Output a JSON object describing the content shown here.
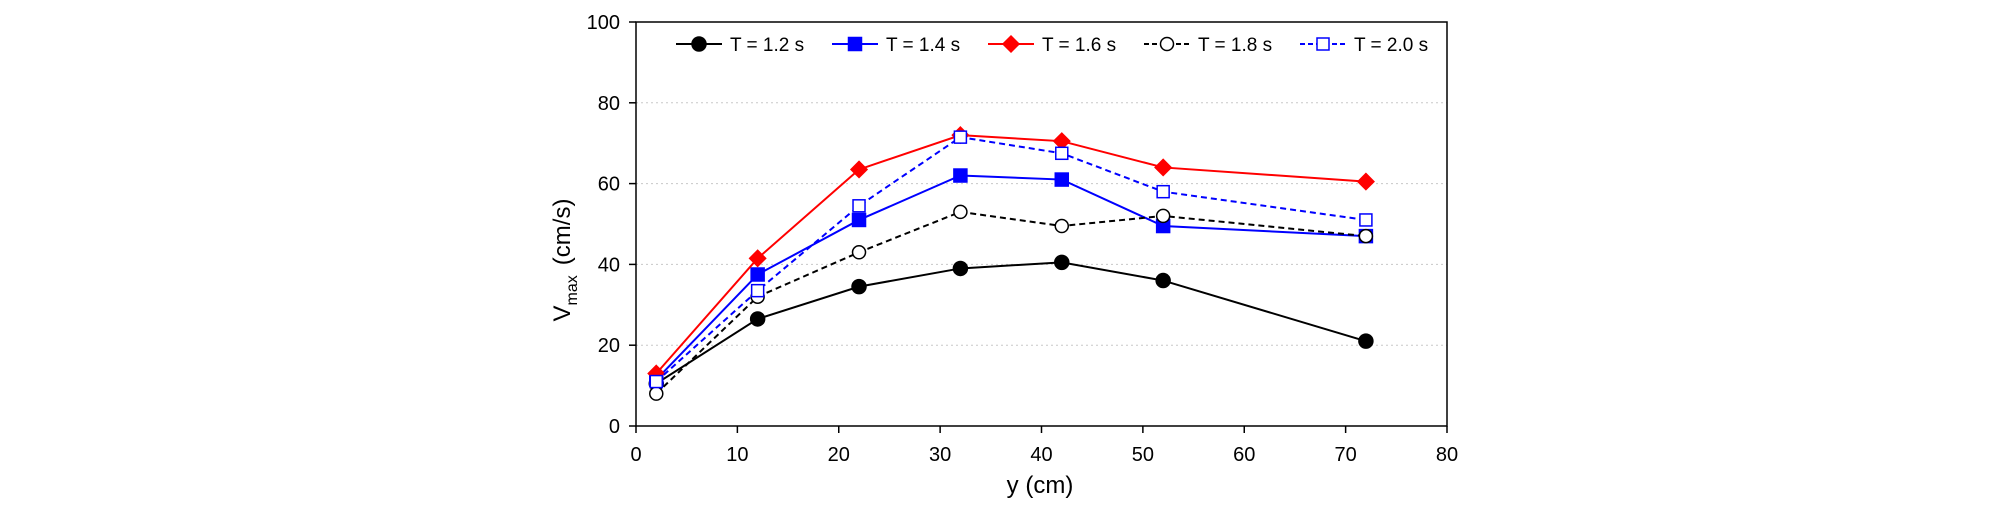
{
  "chart_data": {
    "type": "line",
    "title": "",
    "xlabel": "y (cm)",
    "ylabel_main": "V",
    "ylabel_sub": "max",
    "ylabel_unit": "(cm/s)",
    "xlim": [
      0,
      80
    ],
    "ylim": [
      0,
      100
    ],
    "xticks": [
      0,
      10,
      20,
      30,
      40,
      50,
      60,
      70,
      80
    ],
    "yticks": [
      0,
      20,
      40,
      60,
      80,
      100
    ],
    "grid": "horizontal-dotted",
    "legend_position": "top",
    "x": [
      2,
      12,
      22,
      32,
      42,
      52,
      72
    ],
    "series": [
      {
        "name": "T = 1.2 s",
        "color": "#000000",
        "marker": "circle",
        "filled": true,
        "dashed": false,
        "values": [
          10.5,
          26.5,
          34.5,
          39,
          40.5,
          36,
          21
        ]
      },
      {
        "name": "T = 1.4 s",
        "color": "#0000ff",
        "marker": "square",
        "filled": true,
        "dashed": false,
        "values": [
          11.5,
          37.5,
          51,
          62,
          61,
          49.5,
          47
        ]
      },
      {
        "name": "T = 1.6 s",
        "color": "#ff0000",
        "marker": "diamond",
        "filled": true,
        "dashed": false,
        "values": [
          13,
          41.5,
          63.5,
          72,
          70.5,
          64,
          60.5
        ]
      },
      {
        "name": "T = 1.8 s",
        "color": "#000000",
        "marker": "circle",
        "filled": false,
        "dashed": true,
        "values": [
          8,
          32,
          43,
          53,
          49.5,
          52,
          47
        ]
      },
      {
        "name": "T = 2.0 s",
        "color": "#0000ff",
        "marker": "square",
        "filled": false,
        "dashed": true,
        "values": [
          11,
          33.5,
          54.5,
          71.5,
          67.5,
          58,
          51
        ]
      }
    ]
  }
}
